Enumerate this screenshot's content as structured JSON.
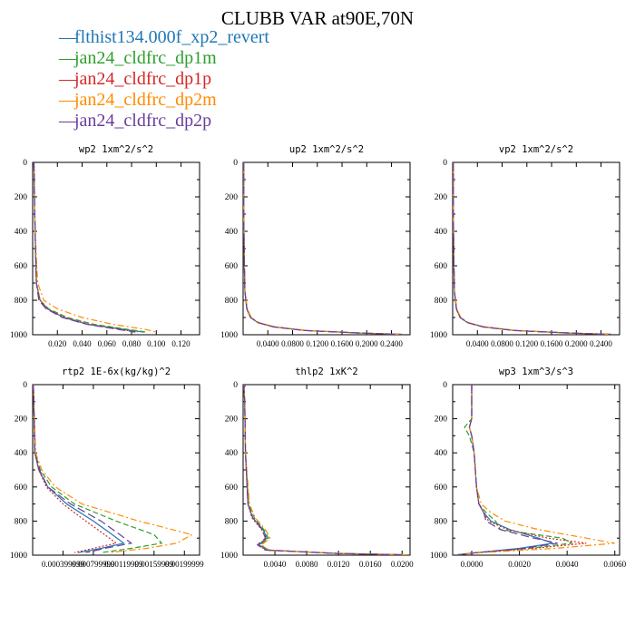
{
  "title": "CLUBB VAR at90E,70N",
  "legend": [
    {
      "label": "flthist134.000f_xp2_revert",
      "color": "#1f77b4",
      "dash": "solid"
    },
    {
      "label": "jan24_cldfrc_dp1m",
      "color": "#2ca02c",
      "dash": "dashed"
    },
    {
      "label": "jan24_cldfrc_dp1p",
      "color": "#d62728",
      "dash": "dotted"
    },
    {
      "label": "jan24_cldfrc_dp2m",
      "color": "#ff8c00",
      "dash": "dashdot"
    },
    {
      "label": "jan24_cldfrc_dp2p",
      "color": "#6a3d9a",
      "dash": "longdash"
    }
  ],
  "chart_data": [
    {
      "type": "line",
      "title": "wp2  1xm^2/s^2",
      "xlim": [
        0,
        0.135
      ],
      "ylim": [
        1000,
        0
      ],
      "yticks": [
        "0",
        "200",
        "400",
        "600",
        "800",
        "1000"
      ],
      "xticks": [
        0.02,
        0.04,
        0.06,
        0.08,
        0.1,
        0.12
      ],
      "xtick_labels": [
        "0.020",
        "0.040",
        "0.060",
        "0.080",
        "0.100",
        "0.120"
      ],
      "y": [
        0,
        400,
        700,
        800,
        850,
        900,
        940,
        970,
        985
      ],
      "series": [
        {
          "values": [
            0.001,
            0.002,
            0.003,
            0.006,
            0.012,
            0.025,
            0.045,
            0.075,
            0.09
          ]
        },
        {
          "values": [
            0.001,
            0.002,
            0.003,
            0.006,
            0.013,
            0.028,
            0.05,
            0.078,
            0.092
          ]
        },
        {
          "values": [
            0.001,
            0.002,
            0.003,
            0.006,
            0.012,
            0.026,
            0.046,
            0.072,
            0.085
          ]
        },
        {
          "values": [
            0.001,
            0.002,
            0.004,
            0.009,
            0.02,
            0.04,
            0.065,
            0.092,
            0.1
          ]
        },
        {
          "values": [
            0.001,
            0.002,
            0.003,
            0.005,
            0.011,
            0.024,
            0.044,
            0.07,
            0.083
          ]
        }
      ]
    },
    {
      "type": "line",
      "title": "up2  1xm^2/s^2",
      "xlim": [
        0,
        0.27
      ],
      "ylim": [
        1000,
        0
      ],
      "yticks": [
        "0",
        "200",
        "400",
        "600",
        "800",
        "1000"
      ],
      "xticks": [
        0.04,
        0.08,
        0.12,
        0.16,
        0.2,
        0.24
      ],
      "xtick_labels": [
        "0.0400",
        "0.0800",
        "0.1200",
        "0.1600",
        "0.2000",
        "0.2400"
      ],
      "y": [
        0,
        300,
        600,
        750,
        850,
        900,
        930,
        955,
        975,
        990,
        998
      ],
      "series": [
        {
          "values": [
            0.001,
            0.001,
            0.002,
            0.003,
            0.006,
            0.012,
            0.024,
            0.05,
            0.1,
            0.19,
            0.26
          ]
        },
        {
          "values": [
            0.001,
            0.001,
            0.002,
            0.003,
            0.006,
            0.012,
            0.025,
            0.052,
            0.102,
            0.19,
            0.26
          ]
        },
        {
          "values": [
            0.001,
            0.001,
            0.002,
            0.003,
            0.006,
            0.012,
            0.024,
            0.05,
            0.1,
            0.188,
            0.258
          ]
        },
        {
          "values": [
            0.001,
            0.001,
            0.002,
            0.003,
            0.007,
            0.013,
            0.026,
            0.053,
            0.103,
            0.19,
            0.26
          ]
        },
        {
          "values": [
            0.001,
            0.001,
            0.002,
            0.003,
            0.006,
            0.012,
            0.024,
            0.049,
            0.098,
            0.186,
            0.257
          ]
        }
      ]
    },
    {
      "type": "line",
      "title": "vp2  1xm^2/s^2",
      "xlim": [
        0,
        0.27
      ],
      "ylim": [
        1000,
        0
      ],
      "yticks": [
        "0",
        "200",
        "400",
        "600",
        "800",
        "1000"
      ],
      "xticks": [
        0.04,
        0.08,
        0.12,
        0.16,
        0.2,
        0.24
      ],
      "xtick_labels": [
        "0.0400",
        "0.0800",
        "0.1200",
        "0.1600",
        "0.2000",
        "0.2400"
      ],
      "y": [
        0,
        300,
        600,
        750,
        850,
        900,
        930,
        955,
        975,
        990,
        998
      ],
      "series": [
        {
          "values": [
            0.001,
            0.001,
            0.002,
            0.003,
            0.006,
            0.012,
            0.024,
            0.05,
            0.1,
            0.19,
            0.26
          ]
        },
        {
          "values": [
            0.001,
            0.001,
            0.002,
            0.003,
            0.006,
            0.012,
            0.025,
            0.052,
            0.102,
            0.19,
            0.26
          ]
        },
        {
          "values": [
            0.001,
            0.001,
            0.002,
            0.003,
            0.006,
            0.012,
            0.024,
            0.05,
            0.1,
            0.188,
            0.258
          ]
        },
        {
          "values": [
            0.001,
            0.001,
            0.002,
            0.003,
            0.007,
            0.013,
            0.026,
            0.053,
            0.103,
            0.19,
            0.26
          ]
        },
        {
          "values": [
            0.001,
            0.001,
            0.002,
            0.003,
            0.006,
            0.012,
            0.024,
            0.049,
            0.098,
            0.186,
            0.257
          ]
        }
      ]
    },
    {
      "type": "line",
      "title": "rtp2  1E-6x(kg/kg)^2",
      "xlim": [
        0,
        0.0022
      ],
      "ylim": [
        1000,
        0
      ],
      "yticks": [
        "0",
        "200",
        "400",
        "600",
        "800",
        "1000"
      ],
      "xticks": [
        0.0004,
        0.0008,
        0.0012,
        0.0016,
        0.002
      ],
      "xtick_labels": [
        "0.000399999",
        "0.000799999",
        "0.00119999",
        "0.00159999",
        "0.00199999"
      ],
      "y": [
        0,
        400,
        500,
        600,
        700,
        800,
        880,
        930,
        960,
        985
      ],
      "series": [
        {
          "values": [
            1e-05,
            3e-05,
            8e-05,
            0.0002,
            0.00045,
            0.0008,
            0.00105,
            0.0012,
            0.0009,
            0.0006
          ]
        },
        {
          "values": [
            1e-05,
            3e-05,
            0.0001,
            0.00025,
            0.00055,
            0.0011,
            0.0016,
            0.0017,
            0.0013,
            0.0009
          ]
        },
        {
          "values": [
            1e-05,
            3e-05,
            8e-05,
            0.00018,
            0.0004,
            0.0007,
            0.00095,
            0.0011,
            0.0008,
            0.00055
          ]
        },
        {
          "values": [
            1e-05,
            4e-05,
            0.00012,
            0.0003,
            0.00065,
            0.0014,
            0.0021,
            0.0019,
            0.0015,
            0.001
          ]
        },
        {
          "values": [
            1e-05,
            3e-05,
            9e-05,
            0.0002,
            0.0005,
            0.0009,
            0.00115,
            0.0013,
            0.00095,
            0.0007
          ]
        }
      ]
    },
    {
      "type": "line",
      "title": "thlp2  1xK^2",
      "xlim": [
        0,
        0.021
      ],
      "ylim": [
        1000,
        0
      ],
      "yticks": [
        "0",
        "200",
        "400",
        "600",
        "800",
        "1000"
      ],
      "xticks": [
        0.004,
        0.008,
        0.012,
        0.016,
        0.02
      ],
      "xtick_labels": [
        "0.0040",
        "0.0080",
        "0.0120",
        "0.0160",
        "0.0200"
      ],
      "y": [
        0,
        20,
        100,
        400,
        700,
        780,
        850,
        900,
        940,
        970,
        990,
        998
      ],
      "series": [
        {
          "values": [
            0.0003,
            0.0001,
            0.0002,
            0.0003,
            0.0006,
            0.0012,
            0.0025,
            0.003,
            0.002,
            0.003,
            0.012,
            0.0205
          ]
        },
        {
          "values": [
            0.0003,
            0.0001,
            0.0002,
            0.0003,
            0.0007,
            0.0014,
            0.0026,
            0.0032,
            0.0022,
            0.0032,
            0.012,
            0.0205
          ]
        },
        {
          "values": [
            0.0003,
            0.0001,
            0.0002,
            0.0003,
            0.0006,
            0.0011,
            0.0023,
            0.0029,
            0.0019,
            0.0029,
            0.0118,
            0.0203
          ]
        },
        {
          "values": [
            0.0003,
            0.0001,
            0.0002,
            0.0003,
            0.0008,
            0.0015,
            0.0028,
            0.0034,
            0.0023,
            0.0033,
            0.0121,
            0.0206
          ]
        },
        {
          "values": [
            0.0003,
            0.0001,
            0.0002,
            0.0003,
            0.0006,
            0.0012,
            0.0024,
            0.0028,
            0.0018,
            0.0028,
            0.0117,
            0.0202
          ]
        }
      ]
    },
    {
      "type": "line",
      "title": "wp3  1xm^3/s^3",
      "xlim": [
        -0.0008,
        0.0062
      ],
      "ylim": [
        1000,
        0
      ],
      "yticks": [
        "0",
        "200",
        "400",
        "600",
        "800",
        "1000"
      ],
      "xticks": [
        0.0,
        0.002,
        0.004,
        0.006
      ],
      "xtick_labels": [
        "0.0000",
        "0.0020",
        "0.0040",
        "0.0060"
      ],
      "y": [
        0,
        200,
        250,
        300,
        400,
        600,
        700,
        750,
        800,
        850,
        900,
        930,
        960,
        985,
        998
      ],
      "series": [
        {
          "values": [
            0.0,
            0.0,
            -0.0001,
            0.0,
            0.0001,
            0.0002,
            0.0003,
            0.0005,
            0.0008,
            0.0016,
            0.0028,
            0.0034,
            0.002,
            0.0002,
            -0.0006
          ]
        },
        {
          "values": [
            0.0,
            0.0,
            -0.0003,
            -0.0001,
            0.0001,
            0.0002,
            0.0003,
            0.0006,
            0.001,
            0.0012,
            0.0038,
            0.0042,
            0.0024,
            0.0002,
            -0.0006
          ]
        },
        {
          "values": [
            0.0,
            0.0,
            -0.0001,
            0.0,
            0.0001,
            0.0002,
            0.0003,
            0.0005,
            0.0007,
            0.0015,
            0.0032,
            0.0048,
            0.0026,
            0.0002,
            -0.0006
          ]
        },
        {
          "values": [
            0.0,
            0.0,
            -0.0001,
            0.0,
            0.0001,
            0.0002,
            0.0004,
            0.0008,
            0.0014,
            0.0028,
            0.0048,
            0.006,
            0.0035,
            0.0004,
            -0.0006
          ]
        },
        {
          "values": [
            0.0,
            0.0,
            -0.0001,
            0.0,
            0.0001,
            0.0002,
            0.0003,
            0.0005,
            0.0006,
            0.0012,
            0.0026,
            0.0036,
            0.0022,
            0.0002,
            -0.0006
          ]
        }
      ]
    }
  ]
}
